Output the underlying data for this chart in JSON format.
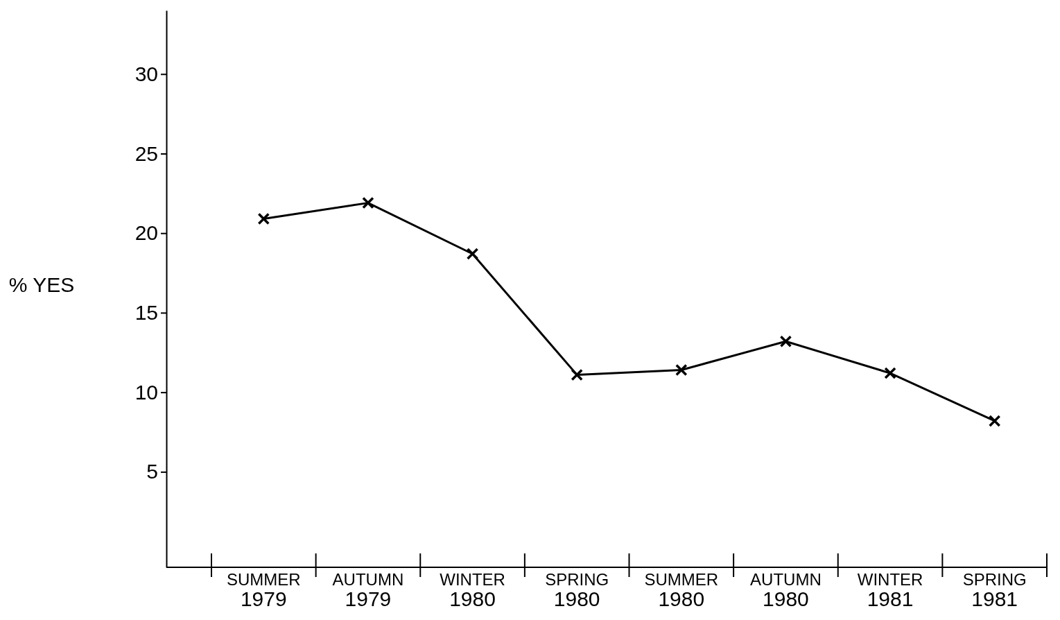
{
  "chart_data": {
    "type": "line",
    "ylabel": "% YES",
    "categories": [
      "SUMMER\n1979",
      "AUTUMN\n1979",
      "WINTER\n1980",
      "SPRING\n1980",
      "SUMMER\n1980",
      "AUTUMN\n1980",
      "WINTER\n1981",
      "SPRING\n1981"
    ],
    "series": [
      {
        "color": "#000000",
        "values": [
          20.9,
          21.9,
          18.7,
          11.1,
          11.4,
          13.2,
          11.2,
          8.2
        ]
      }
    ],
    "ylim": [
      -1,
      34
    ],
    "yticks": [
      5,
      10,
      15,
      20,
      25,
      30
    ],
    "grid": false,
    "marker": "cross",
    "line_style": "solid"
  }
}
